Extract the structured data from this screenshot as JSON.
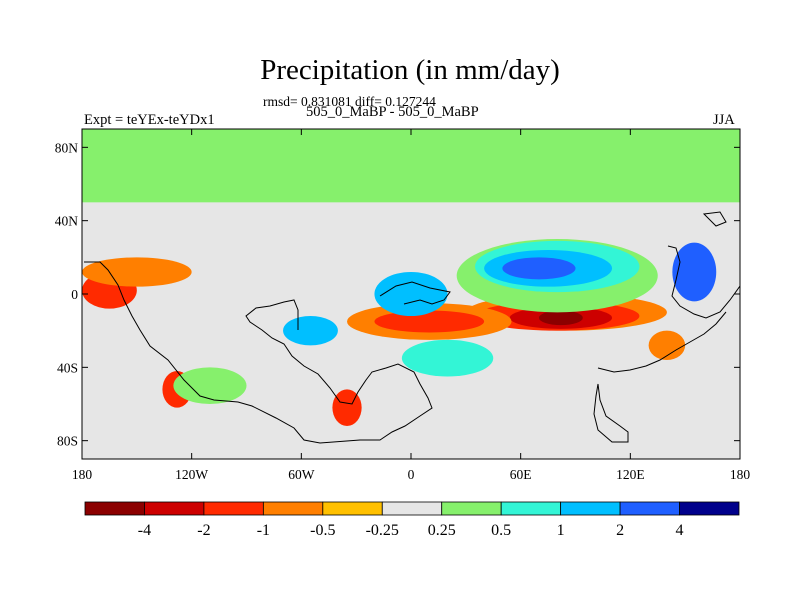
{
  "title": "Precipitation (in mm/day)",
  "stats_text": "rmsd= 0.831081 diff= 0.127244",
  "experiment_label": "Expt = teYEx-teYDx1",
  "runs_label": "505_0_MaBP - 505_0_MaBP",
  "season": "JJA",
  "y_axis": {
    "ticks": [
      {
        "value": 80,
        "label": "80N"
      },
      {
        "value": 40,
        "label": "40N"
      },
      {
        "value": 0,
        "label": "0"
      },
      {
        "value": -40,
        "label": "40S"
      },
      {
        "value": -80,
        "label": "80S"
      }
    ],
    "range": [
      -90,
      90
    ]
  },
  "x_axis": {
    "ticks": [
      {
        "value": -180,
        "label": "180"
      },
      {
        "value": -120,
        "label": "120W"
      },
      {
        "value": -60,
        "label": "60W"
      },
      {
        "value": 0,
        "label": "0"
      },
      {
        "value": 60,
        "label": "60E"
      },
      {
        "value": 120,
        "label": "120E"
      },
      {
        "value": 180,
        "label": "180"
      }
    ],
    "range": [
      -180,
      180
    ]
  },
  "colorbar": {
    "colors": [
      "#8b0000",
      "#cd0000",
      "#ff2a00",
      "#ff7f00",
      "#ffc000",
      "#e6e6e6",
      "#86f06c",
      "#33f5d6",
      "#00bfff",
      "#1f5fff",
      "#00008b"
    ],
    "labels": [
      "-4",
      "-2",
      "-1",
      "-0.5",
      "-0.25",
      "0.25",
      "0.5",
      "1",
      "2",
      "4"
    ]
  },
  "map_field": {
    "background_color": "#e6e6e6",
    "north_band": {
      "color": "#86f06c",
      "lat_from": 50,
      "lat_to": 90
    },
    "anomalies": [
      {
        "lon": 85,
        "lat": -10,
        "rx": 55,
        "ry": 5,
        "level": "#ff7f00"
      },
      {
        "lon": 80,
        "lat": -12,
        "rx": 45,
        "ry": 4,
        "level": "#ff2a00"
      },
      {
        "lon": 82,
        "lat": -13,
        "rx": 28,
        "ry": 3,
        "level": "#cd0000"
      },
      {
        "lon": 82,
        "lat": -13,
        "rx": 12,
        "ry": 2,
        "level": "#8b0000"
      },
      {
        "lon": 10,
        "lat": -15,
        "rx": 45,
        "ry": 5,
        "level": "#ff7f00"
      },
      {
        "lon": 10,
        "lat": -15,
        "rx": 30,
        "ry": 3,
        "level": "#ff2a00"
      },
      {
        "lon": 80,
        "lat": 10,
        "rx": 55,
        "ry": 10,
        "level": "#86f06c"
      },
      {
        "lon": 80,
        "lat": 15,
        "rx": 45,
        "ry": 7,
        "level": "#33f5d6"
      },
      {
        "lon": 75,
        "lat": 14,
        "rx": 35,
        "ry": 5,
        "level": "#00bfff"
      },
      {
        "lon": 70,
        "lat": 14,
        "rx": 20,
        "ry": 3,
        "level": "#1f5fff"
      },
      {
        "lon": 0,
        "lat": 0,
        "rx": 20,
        "ry": 6,
        "level": "#00bfff"
      },
      {
        "lon": -165,
        "lat": 2,
        "rx": 15,
        "ry": 5,
        "level": "#ff2a00"
      },
      {
        "lon": -150,
        "lat": 12,
        "rx": 30,
        "ry": 4,
        "level": "#ff7f00"
      },
      {
        "lon": -128,
        "lat": -52,
        "rx": 8,
        "ry": 5,
        "level": "#ff2a00"
      },
      {
        "lon": -35,
        "lat": -62,
        "rx": 8,
        "ry": 5,
        "level": "#ff2a00"
      },
      {
        "lon": -55,
        "lat": -20,
        "rx": 15,
        "ry": 4,
        "level": "#00bfff"
      },
      {
        "lon": 155,
        "lat": 12,
        "rx": 12,
        "ry": 8,
        "level": "#1f5fff"
      },
      {
        "lon": 20,
        "lat": -35,
        "rx": 25,
        "ry": 5,
        "level": "#33f5d6"
      },
      {
        "lon": -110,
        "lat": -50,
        "rx": 20,
        "ry": 5,
        "level": "#86f06c"
      },
      {
        "lon": 140,
        "lat": -28,
        "rx": 10,
        "ry": 4,
        "level": "#ff7f00"
      }
    ]
  }
}
